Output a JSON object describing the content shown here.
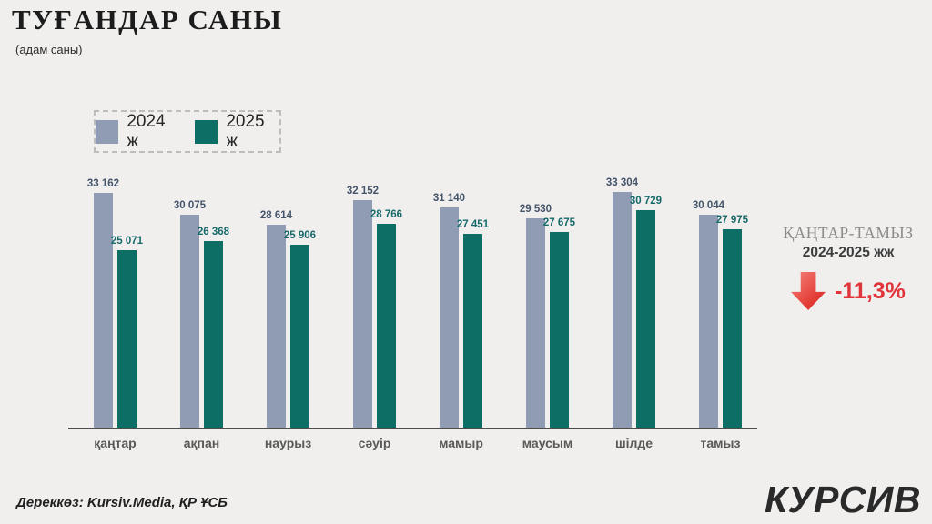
{
  "header": {
    "title": "ТУҒАНДАР САНЫ",
    "subtitle": "(адам саны)"
  },
  "chart_data": {
    "type": "bar",
    "title": "ТУҒАНДАР САНЫ",
    "subtitle": "(адам саны)",
    "categories": [
      "қаңтар",
      "ақпан",
      "наурыз",
      "сәуір",
      "мамыр",
      "маусым",
      "шілде",
      "тамыз"
    ],
    "series": [
      {
        "name": "2024 ж",
        "color": "#8f9cb4",
        "label_color": "#44546a",
        "values": [
          33162,
          30075,
          28614,
          32152,
          31140,
          29530,
          33304,
          30044
        ]
      },
      {
        "name": "2025 ж",
        "color": "#0d6e66",
        "label_color": "#17696a",
        "values": [
          25071,
          26368,
          25906,
          28766,
          27451,
          27675,
          30729,
          27975
        ]
      }
    ],
    "ylim": [
      0,
      33304
    ],
    "grid": false,
    "legend_position": "top-left",
    "value_label_format": "space-thousands"
  },
  "annotation": {
    "heading": "ҚАҢТАР-ТАМЫЗ",
    "subheading": "2024-2025 жж",
    "delta": "-11,3%",
    "delta_color": "#e0353b",
    "arrow_icon": "red-down-arrow"
  },
  "footer": {
    "source": "Дереккөз: Kursiv.Media, ҚР ҰСБ",
    "logo": "КУРСИВ"
  },
  "colors": {
    "background": "#f0efee",
    "axis": "#4d4d4d",
    "month_label": "#595959"
  }
}
